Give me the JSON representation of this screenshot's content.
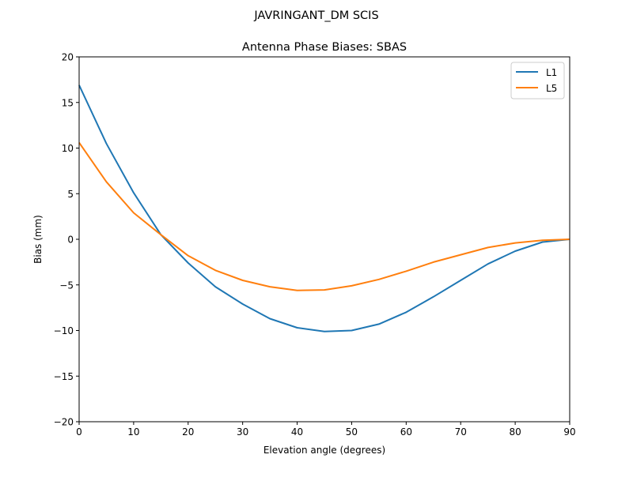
{
  "suptitle": "JAVRINGANT_DM   SCIS",
  "chart_data": {
    "type": "line",
    "title": "Antenna Phase Biases: SBAS",
    "xlabel": "Elevation angle (degrees)",
    "ylabel": "Bias (mm)",
    "xlim": [
      0,
      90
    ],
    "ylim": [
      -20,
      20
    ],
    "xticks": [
      0,
      10,
      20,
      30,
      40,
      50,
      60,
      70,
      80,
      90
    ],
    "yticks": [
      -20,
      -15,
      -10,
      -5,
      0,
      5,
      10,
      15,
      20
    ],
    "grid": false,
    "legend_position": "top-right",
    "x": [
      0,
      5,
      10,
      15,
      20,
      25,
      30,
      35,
      40,
      45,
      50,
      55,
      60,
      65,
      70,
      75,
      80,
      85,
      90
    ],
    "series": [
      {
        "name": "L1",
        "color": "#1f77b4",
        "values": [
          16.9,
          10.5,
          5.1,
          0.5,
          -2.6,
          -5.2,
          -7.1,
          -8.7,
          -9.7,
          -10.1,
          -10.0,
          -9.3,
          -8.0,
          -6.3,
          -4.5,
          -2.7,
          -1.3,
          -0.3,
          0.0
        ]
      },
      {
        "name": "L5",
        "color": "#ff7f0e",
        "values": [
          10.6,
          6.3,
          2.9,
          0.5,
          -1.8,
          -3.4,
          -4.5,
          -5.2,
          -5.6,
          -5.55,
          -5.1,
          -4.4,
          -3.5,
          -2.5,
          -1.7,
          -0.9,
          -0.4,
          -0.1,
          0.0
        ]
      }
    ]
  }
}
